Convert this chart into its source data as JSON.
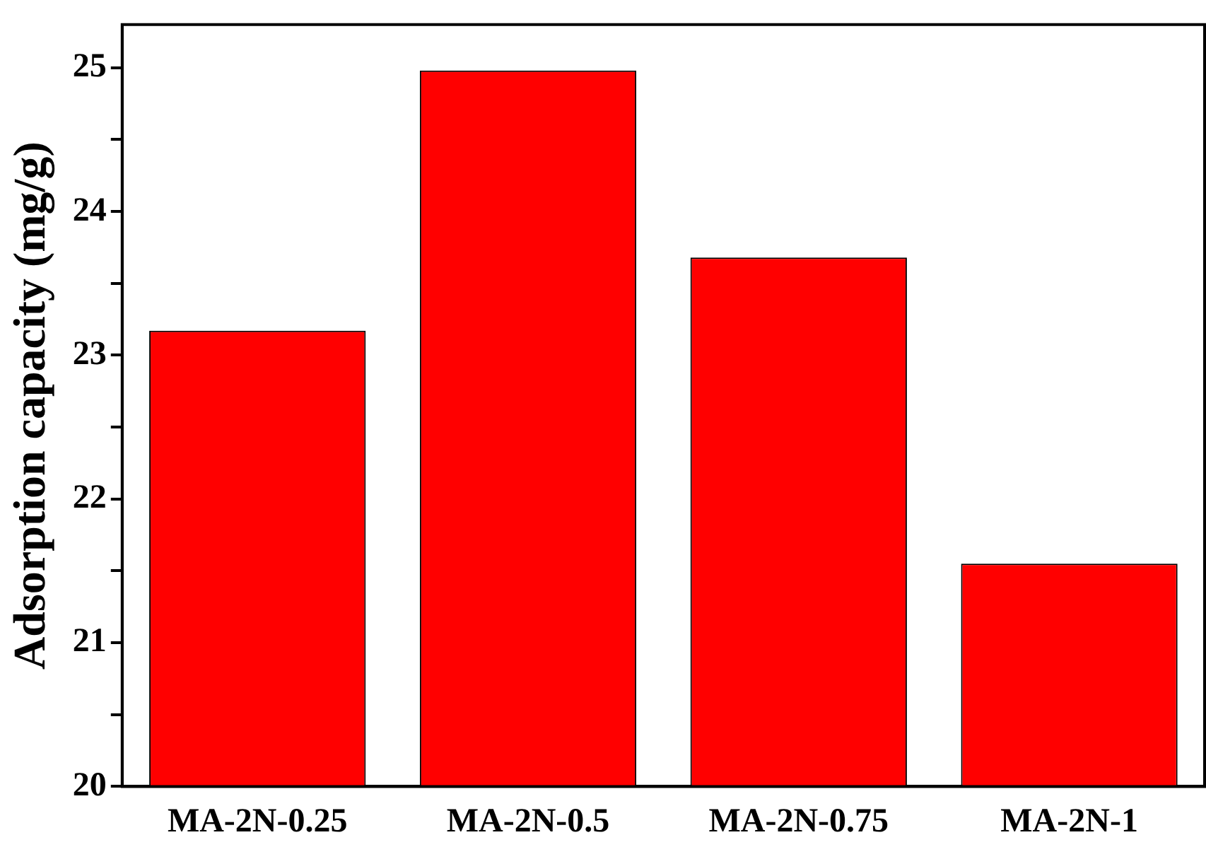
{
  "chart_data": {
    "type": "bar",
    "ylabel": "Adsorption capacity (mg/g)",
    "categories": [
      "MA-2N-0.25",
      "MA-2N-0.5",
      "MA-2N-0.75",
      "MA-2N-1"
    ],
    "values": [
      23.17,
      24.98,
      23.68,
      21.55
    ],
    "color": "#ff0000",
    "ylim": [
      20,
      25.3
    ],
    "yticks": [
      20,
      {
        "value": 20.5,
        "label": null
      },
      21,
      {
        "value": 21.5,
        "label": null
      },
      22,
      {
        "value": 22.5,
        "label": null
      },
      23,
      {
        "value": 23.5,
        "label": null
      },
      24,
      {
        "value": 24.5,
        "label": null
      },
      25
    ],
    "grid": false,
    "legend": false
  }
}
